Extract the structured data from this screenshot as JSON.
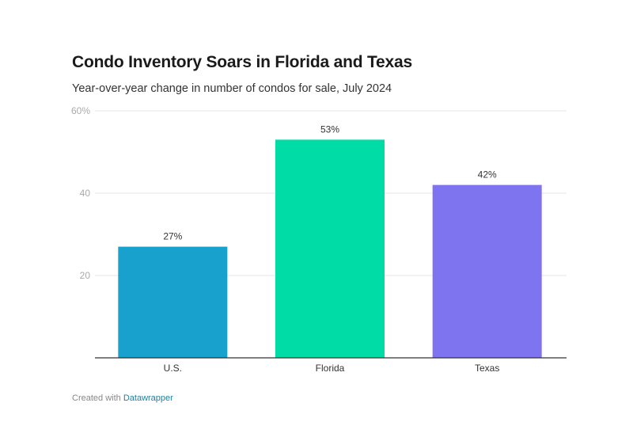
{
  "header": {
    "title": "Condo Inventory Soars in Florida and Texas",
    "subtitle": "Year-over-year change in number of condos for sale, July 2024"
  },
  "footer": {
    "prefix": "Created with",
    "link_text": "Datawrapper"
  },
  "chart_data": {
    "type": "bar",
    "title": "Condo Inventory Soars in Florida and Texas",
    "subtitle": "Year-over-year change in number of condos for sale, July 2024",
    "xlabel": "",
    "ylabel": "",
    "categories": [
      "U.S.",
      "Florida",
      "Texas"
    ],
    "values": [
      27,
      53,
      42
    ],
    "value_labels": [
      "27%",
      "53%",
      "42%"
    ],
    "colors": [
      "#18a1cd",
      "#00dca6",
      "#7e74ef"
    ],
    "ylim": [
      0,
      60
    ],
    "yticks": [
      20,
      40,
      60
    ],
    "ytick_labels": [
      "20",
      "40",
      "60%"
    ],
    "grid": true,
    "legend": "none"
  }
}
